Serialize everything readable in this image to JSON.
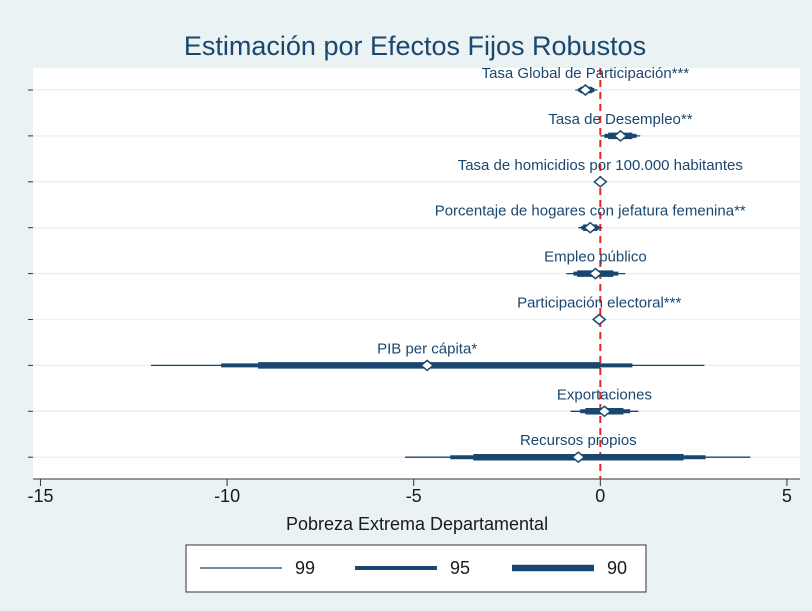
{
  "chart_data": {
    "type": "coefplot",
    "title": "Estimación por Efectos Fijos Robustos",
    "xlabel": "Pobreza Extrema Departamental",
    "categories": [
      "Tasa Global de Participación***",
      "Tasa de Desempleo**",
      "Tasa de homicidios por 100.000 habitantes",
      "Porcentaje de hogares con jefatura femenina**",
      "Empleo público",
      "Participación electoral***",
      "PIB per cápita*",
      "Exportaciones",
      "Recursos propios"
    ],
    "values": [
      -0.4,
      0.54,
      0.0,
      -0.27,
      -0.13,
      -0.03,
      -4.64,
      0.11,
      -0.59
    ],
    "series": [
      {
        "name": "99",
        "low": [
          -0.67,
          0.0,
          -0.03,
          -0.59,
          -0.91,
          -0.06,
          -12.04,
          -0.8,
          -5.23
        ],
        "high": [
          -0.08,
          1.07,
          0.03,
          0.05,
          0.67,
          0.0,
          2.79,
          1.02,
          4.02
        ]
      },
      {
        "name": "95",
        "low": [
          -0.59,
          0.11,
          -0.02,
          -0.51,
          -0.72,
          -0.05,
          -10.16,
          -0.54,
          -4.02
        ],
        "high": [
          -0.16,
          0.97,
          0.02,
          -0.03,
          0.48,
          -0.01,
          0.86,
          0.8,
          2.82
        ]
      },
      {
        "name": "90",
        "low": [
          -0.54,
          0.21,
          -0.01,
          -0.46,
          -0.62,
          -0.04,
          -9.17,
          -0.4,
          -3.4
        ],
        "high": [
          -0.21,
          0.86,
          0.01,
          -0.08,
          0.35,
          -0.02,
          0.0,
          0.62,
          2.23
        ]
      }
    ],
    "color": "#1a476f",
    "refline": 0,
    "refline_color": "#e8251f",
    "xlim": [
      -15.2,
      5.35
    ],
    "xticks": [
      -15,
      -10,
      -5,
      0,
      5
    ],
    "grid": true
  }
}
